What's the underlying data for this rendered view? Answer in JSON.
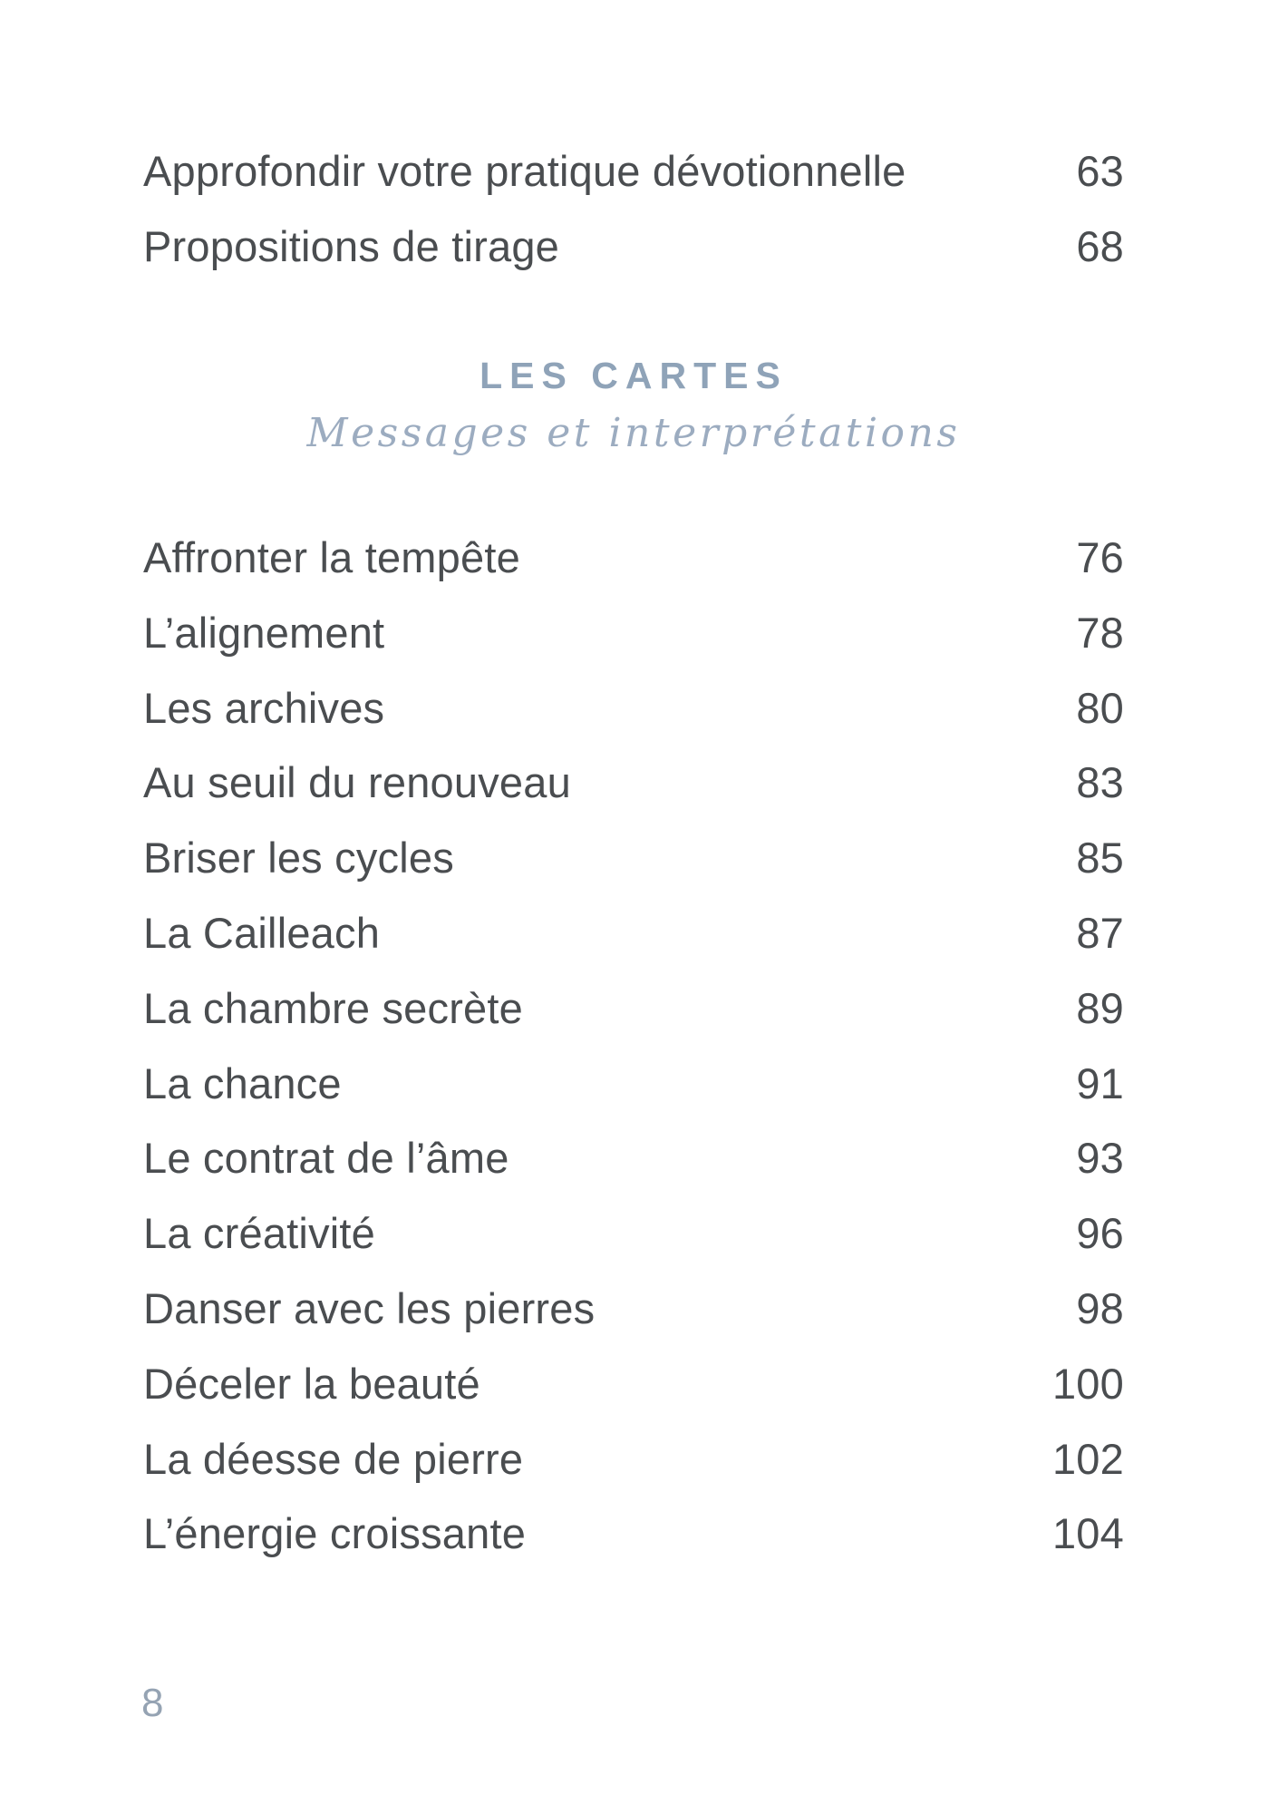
{
  "front_matter": [
    {
      "label": "Approfondir votre pratique dévotionnelle",
      "page": "63"
    },
    {
      "label": "Propositions de tirage",
      "page": "68"
    }
  ],
  "section": {
    "title": "LES CARTES",
    "subtitle": "Messages et interprétations"
  },
  "entries": [
    {
      "label": "Affronter la tempête",
      "page": "76"
    },
    {
      "label": "L’alignement",
      "page": "78"
    },
    {
      "label": "Les archives",
      "page": "80"
    },
    {
      "label": "Au seuil du renouveau",
      "page": "83"
    },
    {
      "label": "Briser les cycles",
      "page": "85"
    },
    {
      "label": "La Cailleach",
      "page": "87"
    },
    {
      "label": "La chambre secrète",
      "page": "89"
    },
    {
      "label": "La chance",
      "page": "91"
    },
    {
      "label": "Le contrat de l’âme",
      "page": "93"
    },
    {
      "label": "La créativité",
      "page": "96"
    },
    {
      "label": "Danser avec les pierres",
      "page": "98"
    },
    {
      "label": "Déceler la beauté",
      "page": "100"
    },
    {
      "label": "La déesse de pierre",
      "page": "102"
    },
    {
      "label": "L’énergie croissante",
      "page": "104"
    }
  ],
  "folio": "8",
  "colors": {
    "body_text": "#4a4d50",
    "section_accent": "#8fa3b8",
    "subtitle_accent": "#9cacc0",
    "folio_accent": "#95a3b3",
    "background": "#ffffff"
  }
}
